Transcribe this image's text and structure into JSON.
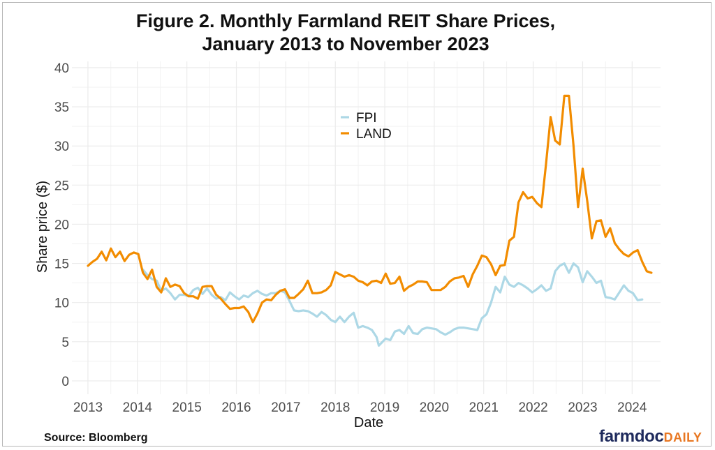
{
  "chart_data": {
    "type": "line",
    "title_line1": "Figure 2. Monthly Farmland REIT Share Prices,",
    "title_line2": "January 2013 to November 2023",
    "xlabel": "Date",
    "ylabel": "Share price ($)",
    "ylim": [
      0,
      40
    ],
    "yticks": [
      "0",
      "5",
      "10",
      "15",
      "20",
      "25",
      "30",
      "35",
      "40"
    ],
    "xticks": [
      "2013",
      "2014",
      "2015",
      "2016",
      "2017",
      "2018",
      "2019",
      "2020",
      "2021",
      "2022",
      "2023",
      "2024"
    ],
    "grid": true,
    "legend_position": "top-center",
    "series": [
      {
        "name": "FPI",
        "color": "#add8e6",
        "points": [
          [
            2014.2,
            14.2
          ],
          [
            2014.3,
            13.5
          ],
          [
            2014.4,
            13.0
          ],
          [
            2014.5,
            12.8
          ],
          [
            2014.6,
            11.5
          ],
          [
            2014.7,
            11.8
          ],
          [
            2014.8,
            11.2
          ],
          [
            2014.9,
            10.4
          ],
          [
            2015.0,
            11.0
          ],
          [
            2015.1,
            11.0
          ],
          [
            2015.2,
            10.8
          ],
          [
            2015.3,
            11.6
          ],
          [
            2015.4,
            11.9
          ],
          [
            2015.5,
            11.1
          ],
          [
            2015.6,
            11.8
          ],
          [
            2015.7,
            11.0
          ],
          [
            2015.8,
            10.5
          ],
          [
            2015.9,
            10.7
          ],
          [
            2016.0,
            10.3
          ],
          [
            2016.1,
            11.3
          ],
          [
            2016.2,
            10.8
          ],
          [
            2016.3,
            10.4
          ],
          [
            2016.4,
            10.9
          ],
          [
            2016.5,
            10.7
          ],
          [
            2016.6,
            11.2
          ],
          [
            2016.7,
            11.5
          ],
          [
            2016.8,
            11.1
          ],
          [
            2016.9,
            10.9
          ],
          [
            2017.0,
            11.2
          ],
          [
            2017.1,
            11.2
          ],
          [
            2017.2,
            11.5
          ],
          [
            2017.3,
            11.3
          ],
          [
            2017.4,
            10.2
          ],
          [
            2017.5,
            9.0
          ],
          [
            2017.6,
            8.9
          ],
          [
            2017.7,
            9.0
          ],
          [
            2017.8,
            8.9
          ],
          [
            2017.9,
            8.6
          ],
          [
            2018.0,
            8.2
          ],
          [
            2018.1,
            8.8
          ],
          [
            2018.2,
            8.4
          ],
          [
            2018.3,
            7.8
          ],
          [
            2018.4,
            7.5
          ],
          [
            2018.5,
            8.2
          ],
          [
            2018.6,
            7.5
          ],
          [
            2018.7,
            8.2
          ],
          [
            2018.8,
            8.7
          ],
          [
            2018.9,
            6.8
          ],
          [
            2019.0,
            7.0
          ],
          [
            2019.1,
            6.8
          ],
          [
            2019.2,
            6.5
          ],
          [
            2019.3,
            5.6
          ],
          [
            2019.35,
            4.5
          ],
          [
            2019.5,
            5.4
          ],
          [
            2019.6,
            5.2
          ],
          [
            2019.7,
            6.3
          ],
          [
            2019.8,
            6.5
          ],
          [
            2019.9,
            6.0
          ],
          [
            2020.0,
            7.0
          ],
          [
            2020.1,
            6.1
          ],
          [
            2020.2,
            6.0
          ],
          [
            2020.3,
            6.6
          ],
          [
            2020.4,
            6.8
          ],
          [
            2020.5,
            6.7
          ],
          [
            2020.6,
            6.6
          ],
          [
            2020.7,
            6.2
          ],
          [
            2020.8,
            5.9
          ],
          [
            2020.9,
            6.2
          ],
          [
            2021.0,
            6.6
          ],
          [
            2021.1,
            6.8
          ],
          [
            2021.2,
            6.8
          ],
          [
            2021.3,
            6.7
          ],
          [
            2021.4,
            6.6
          ],
          [
            2021.5,
            6.5
          ],
          [
            2021.6,
            8.0
          ],
          [
            2021.7,
            8.5
          ],
          [
            2021.8,
            10.0
          ],
          [
            2021.9,
            12.0
          ],
          [
            2022.0,
            11.3
          ],
          [
            2022.1,
            13.3
          ],
          [
            2022.2,
            12.3
          ],
          [
            2022.3,
            12.0
          ],
          [
            2022.4,
            12.5
          ],
          [
            2022.5,
            12.2
          ],
          [
            2022.6,
            11.8
          ],
          [
            2022.7,
            11.3
          ],
          [
            2022.8,
            11.7
          ],
          [
            2022.9,
            12.2
          ],
          [
            2023.0,
            11.5
          ],
          [
            2023.1,
            11.8
          ],
          [
            2023.2,
            14.0
          ],
          [
            2023.3,
            14.7
          ],
          [
            2023.4,
            15.0
          ],
          [
            2023.5,
            13.8
          ],
          [
            2023.6,
            15.0
          ],
          [
            2023.7,
            14.5
          ],
          [
            2023.8,
            12.6
          ],
          [
            2023.9,
            14.0
          ],
          [
            2024.0,
            13.3
          ],
          [
            2024.1,
            12.5
          ],
          [
            2024.2,
            12.8
          ],
          [
            2024.3,
            10.7
          ],
          [
            2024.4,
            10.6
          ],
          [
            2024.5,
            10.4
          ],
          [
            2024.6,
            11.3
          ],
          [
            2024.7,
            12.2
          ],
          [
            2024.8,
            11.5
          ],
          [
            2024.9,
            11.2
          ],
          [
            2025.0,
            10.3
          ],
          [
            2025.1,
            10.4
          ]
        ]
      },
      {
        "name": "LAND",
        "color": "#f28c00",
        "points": [
          [
            2013.0,
            14.7
          ],
          [
            2013.1,
            15.2
          ],
          [
            2013.2,
            15.6
          ],
          [
            2013.3,
            16.5
          ],
          [
            2013.4,
            15.4
          ],
          [
            2013.5,
            16.9
          ],
          [
            2013.6,
            15.8
          ],
          [
            2013.7,
            16.5
          ],
          [
            2013.8,
            15.3
          ],
          [
            2013.9,
            16.1
          ],
          [
            2014.0,
            16.4
          ],
          [
            2014.1,
            16.2
          ],
          [
            2014.2,
            13.8
          ],
          [
            2014.3,
            13.0
          ],
          [
            2014.4,
            14.2
          ],
          [
            2014.5,
            12.0
          ],
          [
            2014.6,
            11.3
          ],
          [
            2014.7,
            13.1
          ],
          [
            2014.8,
            12.0
          ],
          [
            2014.9,
            12.3
          ],
          [
            2015.0,
            12.1
          ],
          [
            2015.1,
            11.2
          ],
          [
            2015.2,
            10.8
          ],
          [
            2015.3,
            10.8
          ],
          [
            2015.4,
            10.5
          ],
          [
            2015.5,
            12.0
          ],
          [
            2015.6,
            12.1
          ],
          [
            2015.7,
            12.1
          ],
          [
            2015.8,
            11.0
          ],
          [
            2015.9,
            10.5
          ],
          [
            2016.0,
            9.8
          ],
          [
            2016.1,
            9.2
          ],
          [
            2016.2,
            9.3
          ],
          [
            2016.3,
            9.3
          ],
          [
            2016.4,
            9.5
          ],
          [
            2016.5,
            8.8
          ],
          [
            2016.6,
            7.5
          ],
          [
            2016.7,
            8.6
          ],
          [
            2016.8,
            10.0
          ],
          [
            2016.9,
            10.4
          ],
          [
            2017.0,
            10.3
          ],
          [
            2017.1,
            11.0
          ],
          [
            2017.2,
            11.5
          ],
          [
            2017.3,
            11.7
          ],
          [
            2017.4,
            10.6
          ],
          [
            2017.5,
            10.6
          ],
          [
            2017.6,
            11.1
          ],
          [
            2017.7,
            11.7
          ],
          [
            2017.8,
            12.8
          ],
          [
            2017.9,
            11.2
          ],
          [
            2018.0,
            11.2
          ],
          [
            2018.1,
            11.3
          ],
          [
            2018.2,
            11.6
          ],
          [
            2018.3,
            12.2
          ],
          [
            2018.4,
            13.9
          ],
          [
            2018.5,
            13.6
          ],
          [
            2018.6,
            13.3
          ],
          [
            2018.7,
            13.5
          ],
          [
            2018.8,
            13.3
          ],
          [
            2018.9,
            12.8
          ],
          [
            2019.0,
            12.6
          ],
          [
            2019.1,
            12.2
          ],
          [
            2019.2,
            12.7
          ],
          [
            2019.3,
            12.8
          ],
          [
            2019.4,
            12.5
          ],
          [
            2019.5,
            13.7
          ],
          [
            2019.6,
            12.4
          ],
          [
            2019.7,
            12.5
          ],
          [
            2019.8,
            13.3
          ],
          [
            2019.9,
            11.5
          ],
          [
            2020.0,
            12.0
          ],
          [
            2020.1,
            12.3
          ],
          [
            2020.2,
            12.7
          ],
          [
            2020.3,
            12.7
          ],
          [
            2020.4,
            12.6
          ],
          [
            2020.5,
            11.6
          ],
          [
            2020.6,
            11.6
          ],
          [
            2020.7,
            11.6
          ],
          [
            2020.8,
            12.0
          ],
          [
            2020.9,
            12.7
          ],
          [
            2021.0,
            13.1
          ],
          [
            2021.1,
            13.2
          ],
          [
            2021.2,
            13.4
          ],
          [
            2021.3,
            12.0
          ],
          [
            2021.4,
            13.6
          ],
          [
            2021.5,
            14.7
          ],
          [
            2021.6,
            16.0
          ],
          [
            2021.7,
            15.8
          ],
          [
            2021.8,
            14.9
          ],
          [
            2021.9,
            13.5
          ],
          [
            2022.0,
            14.7
          ],
          [
            2022.1,
            14.8
          ],
          [
            2022.2,
            17.9
          ],
          [
            2022.3,
            18.4
          ],
          [
            2022.4,
            22.8
          ],
          [
            2022.5,
            24.1
          ],
          [
            2022.6,
            23.3
          ],
          [
            2022.7,
            23.5
          ],
          [
            2022.8,
            22.7
          ],
          [
            2022.9,
            22.2
          ],
          [
            2023.0,
            27.7
          ],
          [
            2023.1,
            33.7
          ],
          [
            2023.2,
            30.7
          ],
          [
            2023.3,
            30.2
          ],
          [
            2023.4,
            36.4
          ],
          [
            2023.5,
            36.4
          ],
          [
            2023.6,
            30.0
          ],
          [
            2023.7,
            22.2
          ],
          [
            2023.8,
            27.1
          ],
          [
            2023.9,
            23.0
          ],
          [
            2024.0,
            18.2
          ],
          [
            2024.1,
            20.4
          ],
          [
            2024.2,
            20.5
          ],
          [
            2024.3,
            18.4
          ],
          [
            2024.4,
            19.5
          ],
          [
            2024.5,
            17.6
          ],
          [
            2024.6,
            16.8
          ],
          [
            2024.7,
            16.2
          ],
          [
            2024.8,
            15.9
          ],
          [
            2024.9,
            16.4
          ],
          [
            2025.0,
            16.7
          ],
          [
            2025.1,
            15.2
          ],
          [
            2025.2,
            14.0
          ],
          [
            2025.3,
            13.8
          ]
        ]
      }
    ]
  },
  "footer": {
    "source": "Source: Bloomberg",
    "logo_main": "farmdoc",
    "logo_accent": "DAILY",
    "logo_main_color": "#1e2a5c",
    "logo_accent_color": "#e87722"
  }
}
